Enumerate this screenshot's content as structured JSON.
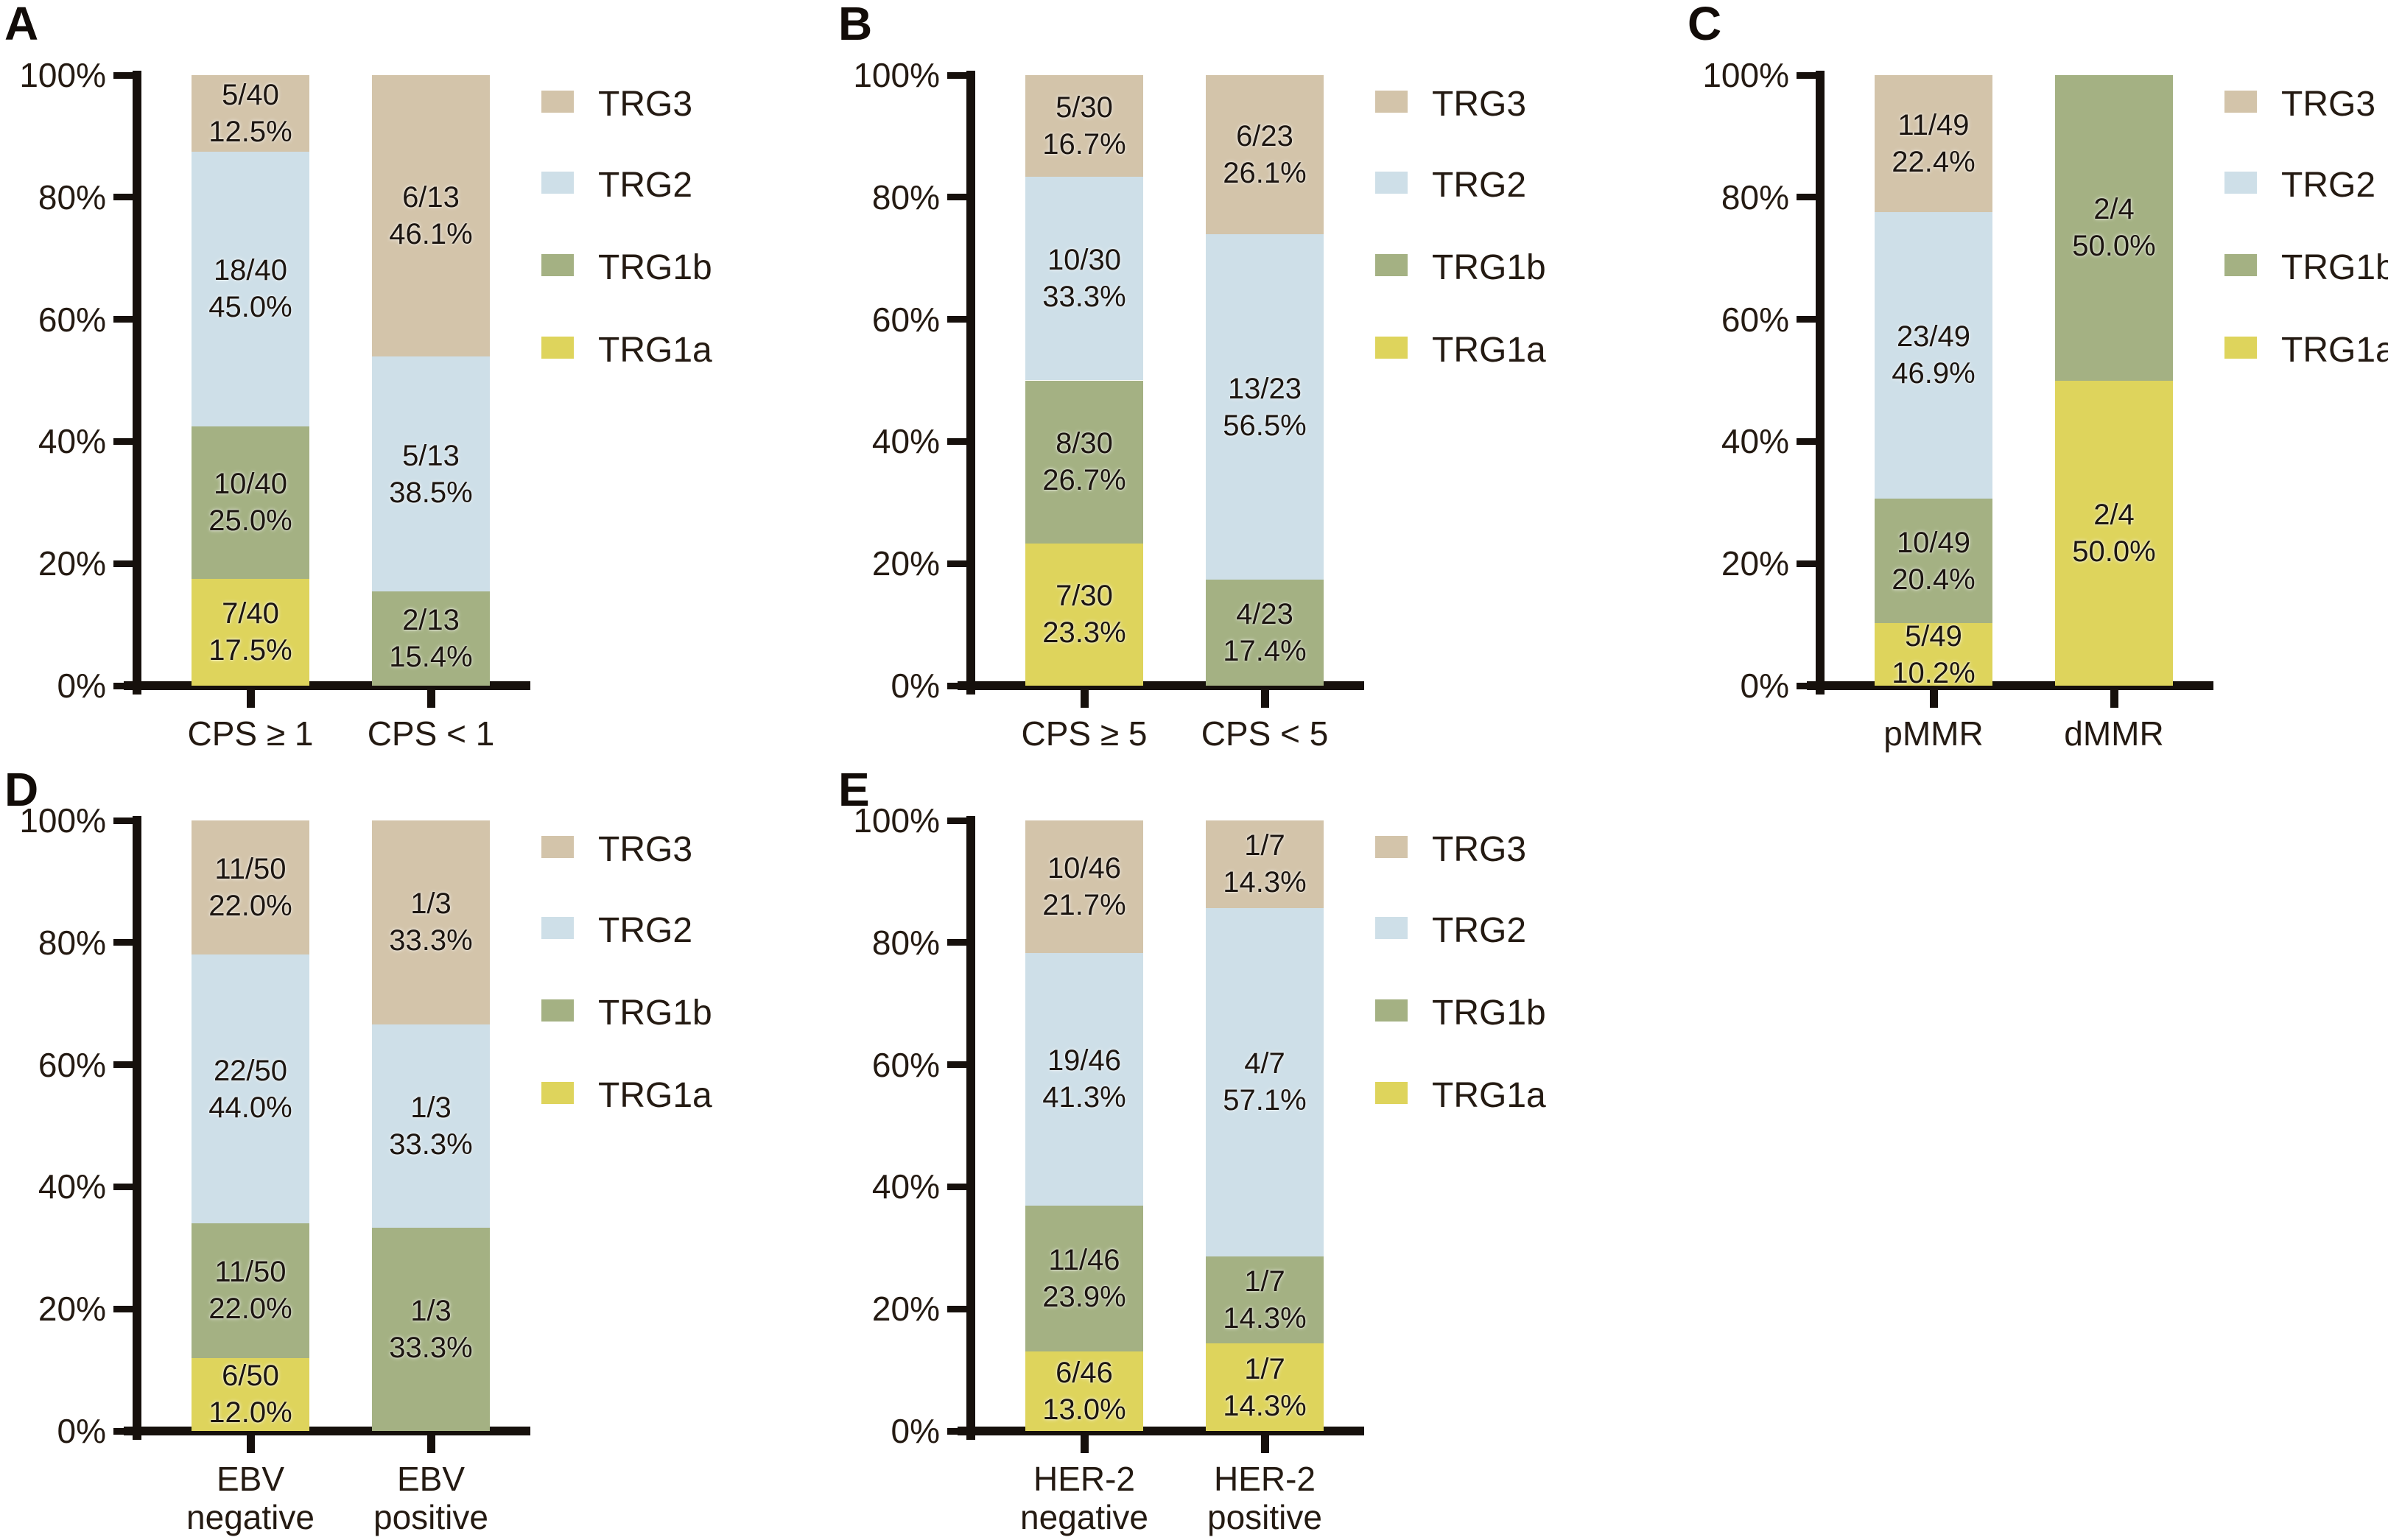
{
  "figure": {
    "background": "#ffffff",
    "text_color": "#241a12",
    "axis_color": "#16100c",
    "y_axis": {
      "tick_labels": [
        "0%",
        "20%",
        "40%",
        "60%",
        "80%",
        "100%"
      ],
      "range": [
        0,
        100
      ],
      "grid": false
    },
    "legend": {
      "position": "right-of-each-panel",
      "items": [
        {
          "label": "TRG3",
          "color": "#d3c4aa"
        },
        {
          "label": "TRG2",
          "color": "#cedfe8"
        },
        {
          "label": "TRG1b",
          "color": "#a4b183"
        },
        {
          "label": "TRG1a",
          "color": "#ded45c"
        }
      ]
    }
  },
  "chart_data": [
    {
      "panel": "A",
      "type": "bar",
      "stacked": true,
      "ylim": [
        0,
        100
      ],
      "categories": [
        "CPS ≥ 1",
        "CPS < 1"
      ],
      "series": [
        {
          "name": "TRG1a",
          "color": "#ded45c",
          "values": [
            17.5,
            0
          ],
          "labels": [
            "7/40\n17.5%",
            ""
          ]
        },
        {
          "name": "TRG1b",
          "color": "#a4b183",
          "values": [
            25.0,
            15.4
          ],
          "labels": [
            "10/40\n25.0%",
            "2/13\n15.4%"
          ]
        },
        {
          "name": "TRG2",
          "color": "#cedfe8",
          "values": [
            45.0,
            38.5
          ],
          "labels": [
            "18/40\n45.0%",
            "5/13\n38.5%"
          ]
        },
        {
          "name": "TRG3",
          "color": "#d3c4aa",
          "values": [
            12.5,
            46.1
          ],
          "labels": [
            "5/40\n12.5%",
            "6/13\n46.1%"
          ]
        }
      ]
    },
    {
      "panel": "B",
      "type": "bar",
      "stacked": true,
      "ylim": [
        0,
        100
      ],
      "categories": [
        "CPS ≥ 5",
        "CPS < 5"
      ],
      "series": [
        {
          "name": "TRG1a",
          "color": "#ded45c",
          "values": [
            23.3,
            0
          ],
          "labels": [
            "7/30\n23.3%",
            ""
          ]
        },
        {
          "name": "TRG1b",
          "color": "#a4b183",
          "values": [
            26.7,
            17.4
          ],
          "labels": [
            "8/30\n26.7%",
            "4/23\n17.4%"
          ]
        },
        {
          "name": "TRG2",
          "color": "#cedfe8",
          "values": [
            33.3,
            56.5
          ],
          "labels": [
            "10/30\n33.3%",
            "13/23\n56.5%"
          ]
        },
        {
          "name": "TRG3",
          "color": "#d3c4aa",
          "values": [
            16.7,
            26.1
          ],
          "labels": [
            "5/30\n16.7%",
            "6/23\n26.1%"
          ]
        }
      ]
    },
    {
      "panel": "C",
      "type": "bar",
      "stacked": true,
      "ylim": [
        0,
        100
      ],
      "categories": [
        "pMMR",
        "dMMR"
      ],
      "series": [
        {
          "name": "TRG1a",
          "color": "#ded45c",
          "values": [
            10.2,
            50.0
          ],
          "labels": [
            "5/49\n10.2%",
            "2/4\n50.0%"
          ]
        },
        {
          "name": "TRG1b",
          "color": "#a4b183",
          "values": [
            20.4,
            50.0
          ],
          "labels": [
            "10/49\n20.4%",
            "2/4\n50.0%"
          ]
        },
        {
          "name": "TRG2",
          "color": "#cedfe8",
          "values": [
            46.9,
            0
          ],
          "labels": [
            "23/49\n46.9%",
            ""
          ]
        },
        {
          "name": "TRG3",
          "color": "#d3c4aa",
          "values": [
            22.4,
            0
          ],
          "labels": [
            "11/49\n22.4%",
            ""
          ]
        }
      ]
    },
    {
      "panel": "D",
      "type": "bar",
      "stacked": true,
      "ylim": [
        0,
        100
      ],
      "categories": [
        "EBV\nnegative",
        "EBV\npositive"
      ],
      "series": [
        {
          "name": "TRG1a",
          "color": "#ded45c",
          "values": [
            12.0,
            0
          ],
          "labels": [
            "6/50\n12.0%",
            ""
          ]
        },
        {
          "name": "TRG1b",
          "color": "#a4b183",
          "values": [
            22.0,
            33.3
          ],
          "labels": [
            "11/50\n22.0%",
            "1/3\n33.3%"
          ]
        },
        {
          "name": "TRG2",
          "color": "#cedfe8",
          "values": [
            44.0,
            33.3
          ],
          "labels": [
            "22/50\n44.0%",
            "1/3\n33.3%"
          ]
        },
        {
          "name": "TRG3",
          "color": "#d3c4aa",
          "values": [
            22.0,
            33.4
          ],
          "labels": [
            "11/50\n22.0%",
            "1/3\n33.3%"
          ]
        }
      ]
    },
    {
      "panel": "E",
      "type": "bar",
      "stacked": true,
      "ylim": [
        0,
        100
      ],
      "categories": [
        "HER-2\nnegative",
        "HER-2\npositive"
      ],
      "series": [
        {
          "name": "TRG1a",
          "color": "#ded45c",
          "values": [
            13.0,
            14.3
          ],
          "labels": [
            "6/46\n13.0%",
            "1/7\n14.3%"
          ]
        },
        {
          "name": "TRG1b",
          "color": "#a4b183",
          "values": [
            23.9,
            14.3
          ],
          "labels": [
            "11/46\n23.9%",
            "1/7\n14.3%"
          ]
        },
        {
          "name": "TRG2",
          "color": "#cedfe8",
          "values": [
            41.3,
            57.1
          ],
          "labels": [
            "19/46\n41.3%",
            "4/7\n57.1%"
          ]
        },
        {
          "name": "TRG3",
          "color": "#d3c4aa",
          "values": [
            21.7,
            14.3
          ],
          "labels": [
            "10/46\n21.7%",
            "1/7\n14.3%"
          ]
        }
      ]
    }
  ]
}
